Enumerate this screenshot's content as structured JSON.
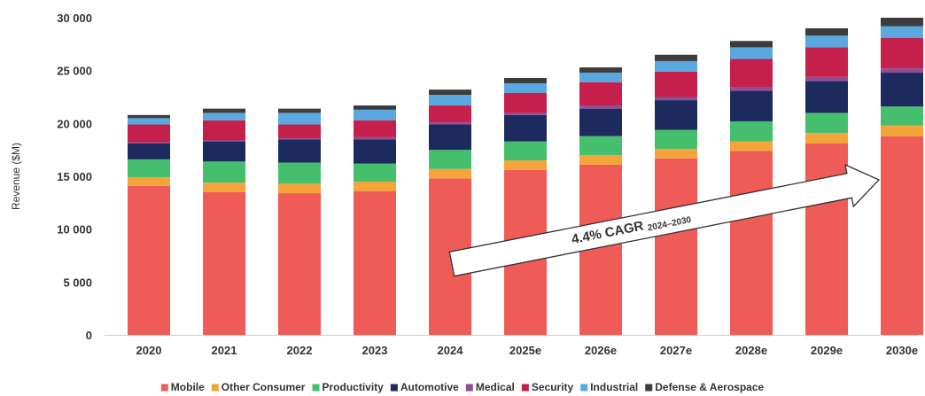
{
  "chart_data": {
    "type": "bar",
    "stacked": true,
    "title": "",
    "xlabel": "",
    "ylabel": "Revenue ($M)",
    "ylim": [
      0,
      30000
    ],
    "yticks": [
      0,
      5000,
      10000,
      15000,
      20000,
      25000,
      30000
    ],
    "ytick_labels": [
      "0",
      "5 000",
      "10 000",
      "15 000",
      "20 000",
      "25 000",
      "30 000"
    ],
    "grid": false,
    "legend_position": "bottom",
    "categories": [
      "2020",
      "2021",
      "2022",
      "2023",
      "2024",
      "2025e",
      "2026e",
      "2027e",
      "2028e",
      "2029e",
      "2030e"
    ],
    "series": [
      {
        "name": "Mobile",
        "color": "#ef5b56",
        "values": [
          14100,
          13500,
          13400,
          13600,
          14800,
          15600,
          16100,
          16700,
          17400,
          18100,
          18800
        ]
      },
      {
        "name": "Other Consumer",
        "color": "#f5a43a",
        "values": [
          800,
          900,
          900,
          900,
          900,
          900,
          900,
          900,
          900,
          1000,
          1000
        ]
      },
      {
        "name": "Productivity",
        "color": "#45bf6e",
        "values": [
          1700,
          2000,
          2000,
          1700,
          1800,
          1800,
          1800,
          1800,
          1900,
          1900,
          1800
        ]
      },
      {
        "name": "Automotive",
        "color": "#1c2a5e",
        "values": [
          1500,
          1900,
          2200,
          2300,
          2400,
          2500,
          2600,
          2800,
          2900,
          3000,
          3200
        ]
      },
      {
        "name": "Medical",
        "color": "#8e4e98",
        "values": [
          100,
          100,
          100,
          200,
          200,
          200,
          300,
          300,
          300,
          400,
          400
        ]
      },
      {
        "name": "Security",
        "color": "#c51f4b",
        "values": [
          1700,
          1900,
          1300,
          1600,
          1600,
          1900,
          2200,
          2400,
          2700,
          2800,
          2900
        ]
      },
      {
        "name": "Industrial",
        "color": "#5aa8e0",
        "values": [
          600,
          700,
          1100,
          1000,
          1000,
          900,
          900,
          1000,
          1100,
          1100,
          1100
        ]
      },
      {
        "name": "Defense & Aerospace",
        "color": "#3c3c3c",
        "values": [
          300,
          400,
          400,
          400,
          500,
          500,
          500,
          600,
          600,
          700,
          800
        ]
      }
    ],
    "annotation": {
      "text": "4.4% CAGR",
      "subscript": "2024–2030",
      "from_category": "2024",
      "to_category": "2030e",
      "arrow": true
    }
  }
}
